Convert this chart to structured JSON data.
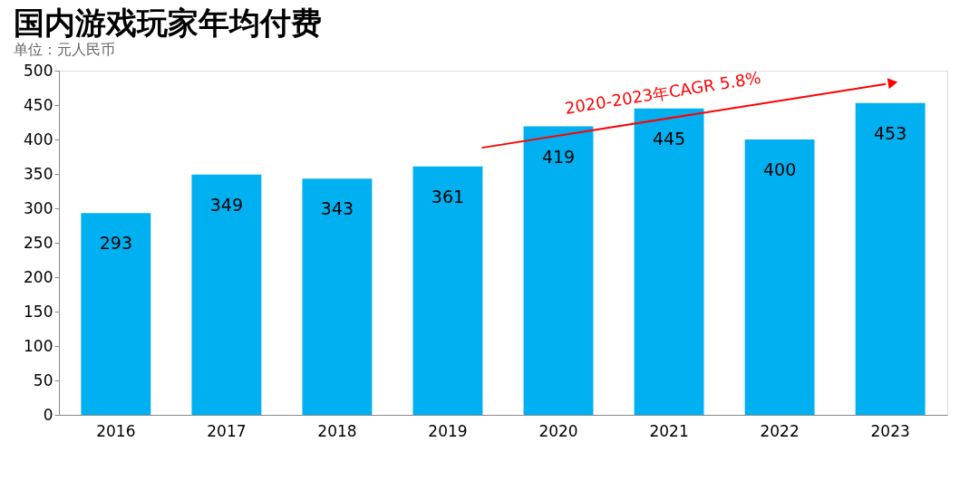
{
  "chart_data": {
    "type": "bar",
    "title": "国内游戏玩家年均付费",
    "subtitle": "单位：元人民币",
    "categories": [
      "2016",
      "2017",
      "2018",
      "2019",
      "2020",
      "2021",
      "2022",
      "2023"
    ],
    "values": [
      293,
      349,
      343,
      361,
      419,
      445,
      400,
      453
    ],
    "color": "#00b0f0",
    "ylim": [
      0,
      500
    ],
    "yticks": [
      0,
      50,
      100,
      150,
      200,
      250,
      300,
      350,
      400,
      450,
      500
    ],
    "grid": false,
    "data_labels": true,
    "annotations": [
      "2020-2023年CAGR 5.8%"
    ]
  }
}
